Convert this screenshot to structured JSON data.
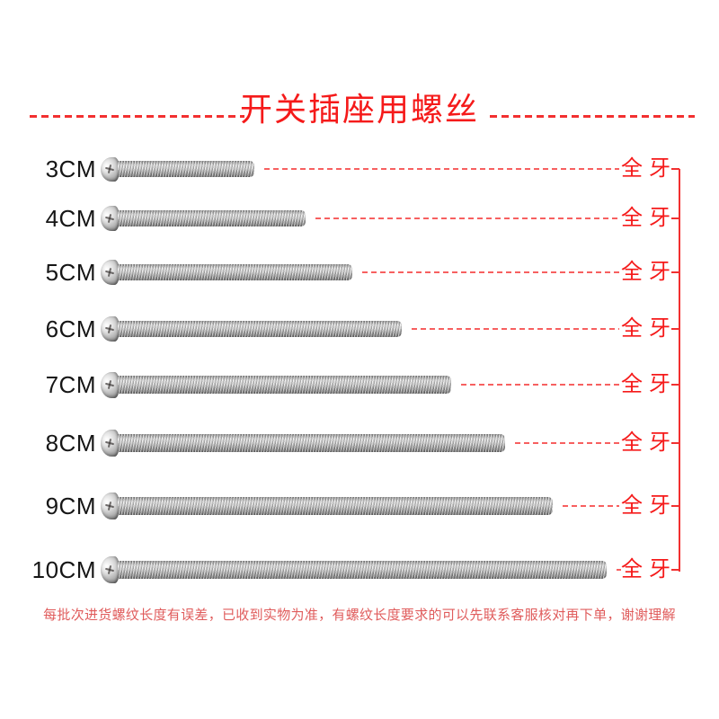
{
  "title": "开关插座用螺丝",
  "rows": [
    {
      "label": "3CM",
      "length_cm": 3,
      "thread_type": "全牙"
    },
    {
      "label": "4CM",
      "length_cm": 4,
      "thread_type": "全牙"
    },
    {
      "label": "5CM",
      "length_cm": 5,
      "thread_type": "全牙"
    },
    {
      "label": "6CM",
      "length_cm": 6,
      "thread_type": "全牙"
    },
    {
      "label": "7CM",
      "length_cm": 7,
      "thread_type": "全牙"
    },
    {
      "label": "8CM",
      "length_cm": 8,
      "thread_type": "全牙"
    },
    {
      "label": "9CM",
      "length_cm": 9,
      "thread_type": "全牙"
    },
    {
      "label": "10CM",
      "length_cm": 10,
      "thread_type": "全牙"
    }
  ],
  "disclaimer": "每批次进货螺纹长度有误差，已收到实物为准，有螺纹长度要求的可以先联系客服核对再下单，谢谢理解",
  "colors": {
    "accent_red": "#f51a1a",
    "line_red": "#f23030",
    "row_dash": "#f76060",
    "label_black": "#161616",
    "disclaimer_red": "#e05c5c",
    "screw_steel": "#c8c8c8",
    "background": "#ffffff"
  }
}
